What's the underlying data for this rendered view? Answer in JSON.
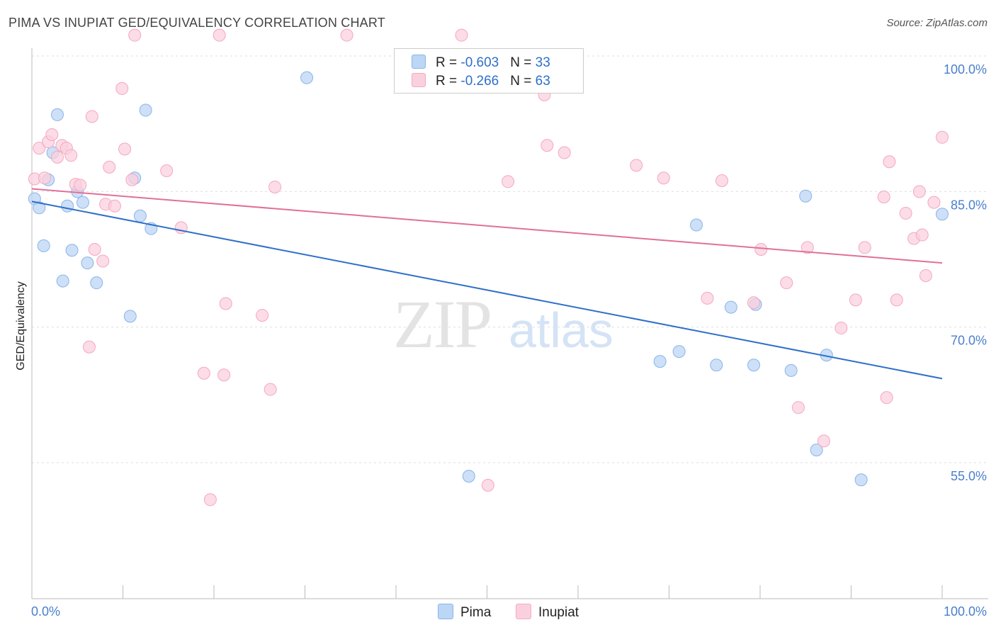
{
  "chart_data": {
    "type": "scatter",
    "title": "PIMA VS INUPIAT GED/EQUIVALENCY CORRELATION CHART",
    "source": "Source: ZipAtlas.com",
    "ylabel": "GED/Equivalency",
    "xlabel": "",
    "xlim": [
      0,
      100
    ],
    "ylim": [
      40,
      105
    ],
    "x_tick_labels": [
      "0.0%",
      "100.0%"
    ],
    "y_ticks": [
      {
        "value": 100,
        "label": "100.0%"
      },
      {
        "value": 85,
        "label": "85.0%"
      },
      {
        "value": 70,
        "label": "70.0%"
      },
      {
        "value": 55,
        "label": "55.0%"
      }
    ],
    "grid": true,
    "legend_position": "top-center",
    "watermark": "ZIPatlas",
    "series": [
      {
        "name": "Pima",
        "color": "#8ab4e8",
        "line_color": "#2e6fc9",
        "stats": {
          "r_label": "R = ",
          "r_value": "-0.603",
          "n_label": "N = ",
          "n_value": "33"
        },
        "trend": {
          "x": [
            0,
            100
          ],
          "y": [
            83.9,
            64.3
          ]
        },
        "points": [
          {
            "x": 0.3,
            "y": 84.2
          },
          {
            "x": 0.8,
            "y": 83.2
          },
          {
            "x": 1.3,
            "y": 79.0
          },
          {
            "x": 1.8,
            "y": 86.3
          },
          {
            "x": 2.3,
            "y": 89.3
          },
          {
            "x": 2.8,
            "y": 93.5
          },
          {
            "x": 3.4,
            "y": 75.1
          },
          {
            "x": 3.9,
            "y": 83.4
          },
          {
            "x": 4.4,
            "y": 78.5
          },
          {
            "x": 5.0,
            "y": 85.0
          },
          {
            "x": 5.6,
            "y": 83.8
          },
          {
            "x": 6.1,
            "y": 77.1
          },
          {
            "x": 7.1,
            "y": 74.9
          },
          {
            "x": 10.8,
            "y": 71.2
          },
          {
            "x": 11.3,
            "y": 86.5
          },
          {
            "x": 11.9,
            "y": 82.3
          },
          {
            "x": 12.5,
            "y": 94.0
          },
          {
            "x": 13.1,
            "y": 80.9
          },
          {
            "x": 30.2,
            "y": 97.6
          },
          {
            "x": 48.0,
            "y": 53.5
          },
          {
            "x": 69.0,
            "y": 66.2
          },
          {
            "x": 71.1,
            "y": 67.3
          },
          {
            "x": 73.0,
            "y": 81.3
          },
          {
            "x": 75.2,
            "y": 65.8
          },
          {
            "x": 76.8,
            "y": 72.2
          },
          {
            "x": 79.3,
            "y": 65.8
          },
          {
            "x": 79.5,
            "y": 72.5
          },
          {
            "x": 83.4,
            "y": 65.2
          },
          {
            "x": 85.0,
            "y": 84.5
          },
          {
            "x": 86.2,
            "y": 56.4
          },
          {
            "x": 87.3,
            "y": 66.9
          },
          {
            "x": 91.1,
            "y": 53.1
          },
          {
            "x": 100.0,
            "y": 82.5
          }
        ]
      },
      {
        "name": "Inupiat",
        "color": "#f4a8c0",
        "line_color": "#e0709a",
        "stats": {
          "r_label": "R = ",
          "r_value": "-0.266",
          "n_label": "N = ",
          "n_value": "63"
        },
        "trend": {
          "x": [
            0,
            100
          ],
          "y": [
            85.3,
            77.1
          ]
        },
        "points": [
          {
            "x": 0.3,
            "y": 86.4
          },
          {
            "x": 0.8,
            "y": 89.8
          },
          {
            "x": 1.4,
            "y": 86.5
          },
          {
            "x": 1.8,
            "y": 90.5
          },
          {
            "x": 2.2,
            "y": 91.3
          },
          {
            "x": 2.8,
            "y": 88.8
          },
          {
            "x": 3.3,
            "y": 90.1
          },
          {
            "x": 3.8,
            "y": 89.8
          },
          {
            "x": 4.3,
            "y": 89.0
          },
          {
            "x": 4.8,
            "y": 85.8
          },
          {
            "x": 5.3,
            "y": 85.7
          },
          {
            "x": 6.3,
            "y": 67.8
          },
          {
            "x": 6.6,
            "y": 93.3
          },
          {
            "x": 6.9,
            "y": 78.6
          },
          {
            "x": 7.8,
            "y": 77.3
          },
          {
            "x": 8.1,
            "y": 83.6
          },
          {
            "x": 8.5,
            "y": 87.7
          },
          {
            "x": 9.1,
            "y": 83.4
          },
          {
            "x": 9.9,
            "y": 96.4
          },
          {
            "x": 10.2,
            "y": 89.7
          },
          {
            "x": 11.0,
            "y": 86.3
          },
          {
            "x": 11.3,
            "y": 102.3
          },
          {
            "x": 14.8,
            "y": 87.3
          },
          {
            "x": 16.4,
            "y": 81.0
          },
          {
            "x": 18.9,
            "y": 64.9
          },
          {
            "x": 19.6,
            "y": 50.9
          },
          {
            "x": 20.6,
            "y": 102.3
          },
          {
            "x": 21.1,
            "y": 64.7
          },
          {
            "x": 21.3,
            "y": 72.6
          },
          {
            "x": 25.3,
            "y": 71.3
          },
          {
            "x": 26.2,
            "y": 63.1
          },
          {
            "x": 26.7,
            "y": 85.5
          },
          {
            "x": 34.6,
            "y": 102.3
          },
          {
            "x": 47.2,
            "y": 102.3
          },
          {
            "x": 50.1,
            "y": 52.5
          },
          {
            "x": 52.3,
            "y": 86.1
          },
          {
            "x": 56.3,
            "y": 95.7
          },
          {
            "x": 56.6,
            "y": 90.1
          },
          {
            "x": 58.5,
            "y": 89.3
          },
          {
            "x": 66.4,
            "y": 87.9
          },
          {
            "x": 69.4,
            "y": 86.5
          },
          {
            "x": 74.2,
            "y": 73.2
          },
          {
            "x": 75.8,
            "y": 86.2
          },
          {
            "x": 79.3,
            "y": 72.7
          },
          {
            "x": 80.1,
            "y": 78.6
          },
          {
            "x": 82.9,
            "y": 74.9
          },
          {
            "x": 84.2,
            "y": 61.1
          },
          {
            "x": 85.2,
            "y": 78.8
          },
          {
            "x": 87.0,
            "y": 57.4
          },
          {
            "x": 88.9,
            "y": 69.9
          },
          {
            "x": 90.5,
            "y": 73.0
          },
          {
            "x": 91.5,
            "y": 78.8
          },
          {
            "x": 93.6,
            "y": 84.4
          },
          {
            "x": 93.9,
            "y": 62.2
          },
          {
            "x": 94.2,
            "y": 88.3
          },
          {
            "x": 95.0,
            "y": 73.0
          },
          {
            "x": 96.0,
            "y": 82.6
          },
          {
            "x": 96.9,
            "y": 79.8
          },
          {
            "x": 97.5,
            "y": 85.0
          },
          {
            "x": 97.8,
            "y": 80.2
          },
          {
            "x": 98.2,
            "y": 75.7
          },
          {
            "x": 99.1,
            "y": 83.8
          },
          {
            "x": 100.0,
            "y": 91.0
          }
        ]
      }
    ]
  }
}
